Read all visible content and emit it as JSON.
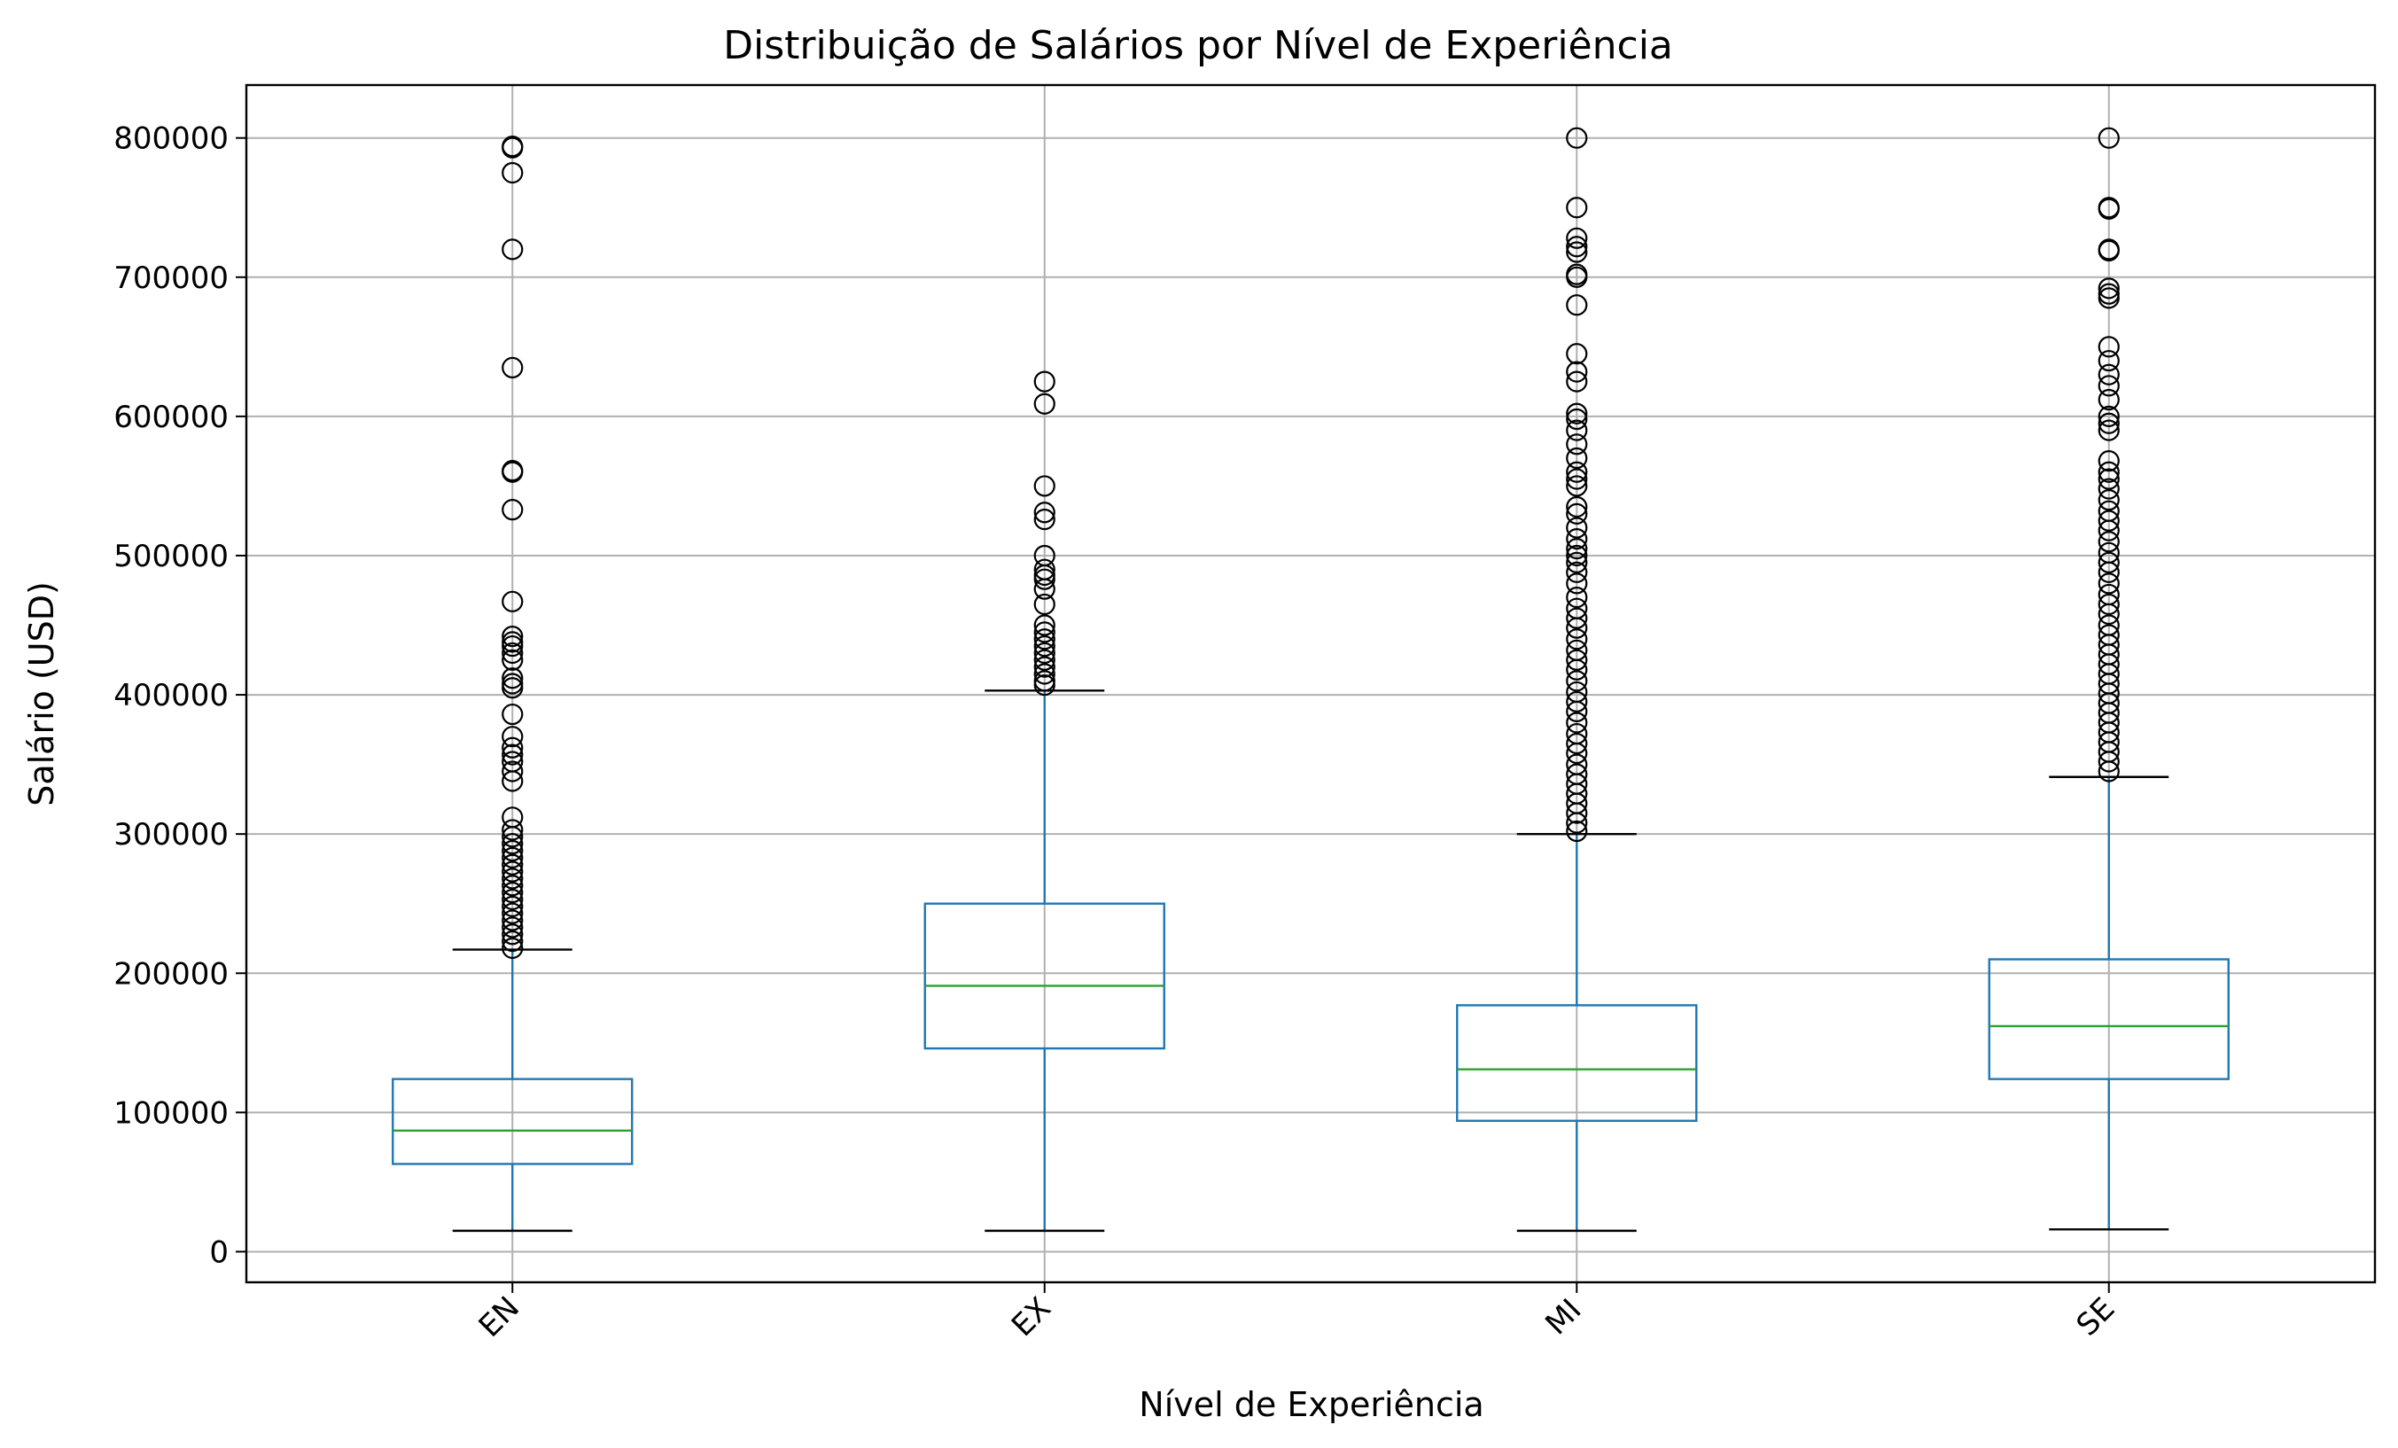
{
  "chart_data": {
    "type": "box",
    "title": "Distribuição de Salários por Nível de Experiência",
    "xlabel": "Nível de Experiência",
    "ylabel": "Salário (USD)",
    "ylim": [
      -22000,
      838000
    ],
    "yticks": [
      0,
      100000,
      200000,
      300000,
      400000,
      500000,
      600000,
      700000,
      800000
    ],
    "ytick_labels": [
      "0",
      "100000",
      "200000",
      "300000",
      "400000",
      "500000",
      "600000",
      "700000",
      "800000"
    ],
    "categories": [
      "EN",
      "EX",
      "MI",
      "SE"
    ],
    "grid": true,
    "boxes": [
      {
        "label": "EN",
        "whisker_low": 15000,
        "q1": 63000,
        "median": 87000,
        "q3": 124000,
        "whisker_high": 217000,
        "outliers": [
          794000,
          793000,
          775000,
          720000,
          635000,
          561000,
          560000,
          533000,
          467000,
          442000,
          438000,
          435000,
          430000,
          425000,
          412000,
          408000,
          405000,
          386000,
          370000,
          362000,
          357000,
          352000,
          345000,
          338000,
          312000,
          303000,
          298000,
          293000,
          288000,
          283000,
          278000,
          273000,
          268000,
          263000,
          258000,
          253000,
          248000,
          243000,
          238000,
          233000,
          228000,
          223000,
          218000
        ]
      },
      {
        "label": "EX",
        "whisker_low": 15000,
        "q1": 146000,
        "median": 191000,
        "q3": 250000,
        "whisker_high": 403000,
        "outliers": [
          625000,
          609000,
          550000,
          531000,
          526000,
          500000,
          490000,
          486000,
          483000,
          476000,
          465000,
          450000,
          445000,
          440000,
          435000,
          430000,
          425000,
          420000,
          415000,
          410000,
          407000
        ]
      },
      {
        "label": "MI",
        "whisker_low": 15000,
        "q1": 94000,
        "median": 131000,
        "q3": 177000,
        "whisker_high": 300000,
        "outliers": [
          800000,
          750000,
          728000,
          722000,
          718000,
          702000,
          700000,
          680000,
          645000,
          632000,
          625000,
          602000,
          598000,
          590000,
          580000,
          570000,
          560000,
          555000,
          550000,
          535000,
          530000,
          520000,
          512000,
          505000,
          500000,
          495000,
          488000,
          480000,
          470000,
          462000,
          455000,
          448000,
          440000,
          432000,
          425000,
          418000,
          410000,
          402000,
          395000,
          388000,
          380000,
          372000,
          365000,
          358000,
          350000,
          343000,
          336000,
          329000,
          322000,
          315000,
          308000,
          302000
        ]
      },
      {
        "label": "SE",
        "whisker_low": 16000,
        "q1": 124000,
        "median": 162000,
        "q3": 210000,
        "whisker_high": 341000,
        "outliers": [
          800000,
          750000,
          749000,
          720000,
          719000,
          692000,
          688000,
          685000,
          650000,
          640000,
          630000,
          622000,
          612000,
          600000,
          595000,
          590000,
          568000,
          560000,
          555000,
          548000,
          540000,
          532000,
          525000,
          518000,
          510000,
          502000,
          495000,
          488000,
          480000,
          472000,
          465000,
          458000,
          450000,
          443000,
          436000,
          429000,
          422000,
          415000,
          408000,
          401000,
          394000,
          387000,
          380000,
          373000,
          366000,
          359000,
          352000,
          345000
        ]
      }
    ],
    "colors": {
      "box": "#1f77b4",
      "median": "#2ca02c",
      "whisker": "#1f77b4",
      "cap": "#000000",
      "grid": "#b0b0b0",
      "outlier_edge": "#000000"
    }
  }
}
